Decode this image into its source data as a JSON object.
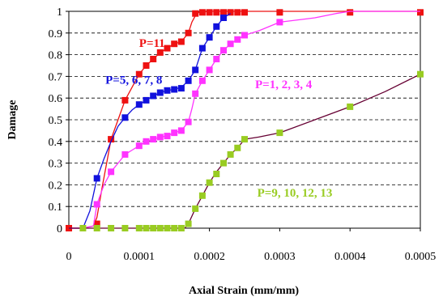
{
  "chart_data": {
    "type": "line",
    "xlabel": "Axial Strain (mm/mm)",
    "ylabel": "Damage",
    "xlim": [
      0,
      0.0005
    ],
    "ylim": [
      0,
      1
    ],
    "x_ticks": [
      "0",
      "0.0001",
      "0.0002",
      "0.0003",
      "0.0004",
      "0.0005"
    ],
    "y_ticks": [
      "0",
      "0.1",
      "0.2",
      "0.3",
      "0.4",
      "0.5",
      "0.6",
      "0.7",
      "0.8",
      "0.9",
      "1"
    ],
    "grid": "horizontal dashed",
    "legend": "none",
    "series": [
      {
        "color": "#ee1111",
        "line_color": "#ee1111",
        "line": [
          [
            0,
            0
          ],
          [
            2e-05,
            0
          ],
          [
            3.5e-05,
            0.01
          ],
          [
            4e-05,
            0.05
          ],
          [
            4.8e-05,
            0.2
          ],
          [
            5.5e-05,
            0.32
          ],
          [
            6e-05,
            0.41
          ],
          [
            7e-05,
            0.5
          ],
          [
            8e-05,
            0.59
          ],
          [
            9e-05,
            0.65
          ],
          [
            0.0001,
            0.71
          ],
          [
            0.00011,
            0.75
          ],
          [
            0.00012,
            0.78
          ],
          [
            0.00013,
            0.81
          ],
          [
            0.00014,
            0.83
          ],
          [
            0.00015,
            0.85
          ],
          [
            0.00016,
            0.86
          ],
          [
            0.00017,
            0.9
          ],
          [
            0.000175,
            0.95
          ],
          [
            0.00018,
            0.98
          ],
          [
            0.000185,
            0.995
          ],
          [
            0.0002,
            1
          ],
          [
            0.0003,
            1
          ],
          [
            0.0004,
            1
          ],
          [
            0.0005,
            1
          ]
        ],
        "markers": [
          [
            0,
            0
          ],
          [
            4e-05,
            0.02
          ],
          [
            6e-05,
            0.41
          ],
          [
            8e-05,
            0.59
          ],
          [
            0.0001,
            0.71
          ],
          [
            0.00011,
            0.75
          ],
          [
            0.00012,
            0.78
          ],
          [
            0.00013,
            0.81
          ],
          [
            0.00014,
            0.83
          ],
          [
            0.00015,
            0.85
          ],
          [
            0.00016,
            0.86
          ],
          [
            0.00017,
            0.9
          ],
          [
            0.00018,
            0.99
          ],
          [
            0.00019,
            0.995
          ],
          [
            0.0002,
            0.995
          ],
          [
            0.00021,
            0.995
          ],
          [
            0.00022,
            0.995
          ],
          [
            0.00023,
            0.995
          ],
          [
            0.00024,
            0.995
          ],
          [
            0.00025,
            0.995
          ],
          [
            0.0003,
            0.995
          ],
          [
            0.0004,
            0.995
          ],
          [
            0.0005,
            0.995
          ]
        ]
      },
      {
        "color": "#1111dd",
        "line_color": "#1111dd",
        "line": [
          [
            0,
            0
          ],
          [
            2e-05,
            0
          ],
          [
            3e-05,
            0.08
          ],
          [
            4e-05,
            0.23
          ],
          [
            5e-05,
            0.32
          ],
          [
            6e-05,
            0.4
          ],
          [
            7e-05,
            0.47
          ],
          [
            8e-05,
            0.51
          ],
          [
            9e-05,
            0.545
          ],
          [
            0.0001,
            0.57
          ],
          [
            0.00011,
            0.59
          ],
          [
            0.00012,
            0.61
          ],
          [
            0.00013,
            0.625
          ],
          [
            0.00014,
            0.635
          ],
          [
            0.00015,
            0.64
          ],
          [
            0.00016,
            0.65
          ],
          [
            0.00017,
            0.68
          ],
          [
            0.00018,
            0.73
          ],
          [
            0.00019,
            0.83
          ],
          [
            0.0002,
            0.88
          ],
          [
            0.00021,
            0.93
          ],
          [
            0.00022,
            0.97
          ],
          [
            0.00023,
            0.99
          ]
        ],
        "markers": [
          [
            4e-05,
            0.23
          ],
          [
            8e-05,
            0.51
          ],
          [
            0.0001,
            0.57
          ],
          [
            0.00011,
            0.59
          ],
          [
            0.00012,
            0.61
          ],
          [
            0.00013,
            0.625
          ],
          [
            0.00014,
            0.635
          ],
          [
            0.00015,
            0.64
          ],
          [
            0.00016,
            0.645
          ],
          [
            0.00017,
            0.68
          ],
          [
            0.00018,
            0.73
          ],
          [
            0.00019,
            0.83
          ],
          [
            0.0002,
            0.88
          ],
          [
            0.00021,
            0.93
          ],
          [
            0.00022,
            0.97
          ]
        ]
      },
      {
        "color": "#ff33ff",
        "line_color": "#ff33ff",
        "line": [
          [
            0,
            0
          ],
          [
            2e-05,
            0
          ],
          [
            3.5e-05,
            0.01
          ],
          [
            4e-05,
            0.11
          ],
          [
            5e-05,
            0.2
          ],
          [
            6e-05,
            0.26
          ],
          [
            7e-05,
            0.3
          ],
          [
            8e-05,
            0.34
          ],
          [
            9e-05,
            0.36
          ],
          [
            0.0001,
            0.38
          ],
          [
            0.00011,
            0.4
          ],
          [
            0.00012,
            0.41
          ],
          [
            0.00013,
            0.42
          ],
          [
            0.00014,
            0.425
          ],
          [
            0.00015,
            0.44
          ],
          [
            0.00016,
            0.45
          ],
          [
            0.00017,
            0.49
          ],
          [
            0.000175,
            0.55
          ],
          [
            0.00018,
            0.62
          ],
          [
            0.00019,
            0.68
          ],
          [
            0.0002,
            0.73
          ],
          [
            0.00021,
            0.78
          ],
          [
            0.00022,
            0.82
          ],
          [
            0.00023,
            0.85
          ],
          [
            0.00024,
            0.87
          ],
          [
            0.00025,
            0.89
          ],
          [
            0.00027,
            0.91
          ],
          [
            0.0003,
            0.95
          ],
          [
            0.00035,
            0.97
          ],
          [
            0.00038,
            0.99
          ],
          [
            0.0004,
            1
          ],
          [
            0.0005,
            1
          ]
        ],
        "markers": [
          [
            4e-05,
            0.11
          ],
          [
            6e-05,
            0.26
          ],
          [
            8e-05,
            0.34
          ],
          [
            0.0001,
            0.38
          ],
          [
            0.00011,
            0.4
          ],
          [
            0.00012,
            0.41
          ],
          [
            0.00013,
            0.42
          ],
          [
            0.00014,
            0.425
          ],
          [
            0.00015,
            0.44
          ],
          [
            0.00016,
            0.45
          ],
          [
            0.00017,
            0.49
          ],
          [
            0.00018,
            0.62
          ],
          [
            0.00019,
            0.68
          ],
          [
            0.0002,
            0.73
          ],
          [
            0.00021,
            0.78
          ],
          [
            0.00022,
            0.82
          ],
          [
            0.00023,
            0.85
          ],
          [
            0.00024,
            0.87
          ],
          [
            0.00025,
            0.89
          ],
          [
            0.0003,
            0.95
          ]
        ]
      },
      {
        "color": "#99cc22",
        "line_color": "#660033",
        "line": [
          [
            0,
            0
          ],
          [
            0.00016,
            0
          ],
          [
            0.000165,
            0
          ],
          [
            0.00017,
            0.02
          ],
          [
            0.00018,
            0.09
          ],
          [
            0.00019,
            0.15
          ],
          [
            0.0002,
            0.21
          ],
          [
            0.00021,
            0.26
          ],
          [
            0.00022,
            0.3
          ],
          [
            0.00023,
            0.34
          ],
          [
            0.00024,
            0.37
          ],
          [
            0.00025,
            0.41
          ],
          [
            0.00027,
            0.42
          ],
          [
            0.0003,
            0.44
          ],
          [
            0.00035,
            0.5
          ],
          [
            0.0004,
            0.56
          ],
          [
            0.00045,
            0.63
          ],
          [
            0.0005,
            0.71
          ]
        ],
        "markers": [
          [
            2e-05,
            0
          ],
          [
            4e-05,
            0
          ],
          [
            6e-05,
            0
          ],
          [
            8e-05,
            0
          ],
          [
            0.0001,
            0
          ],
          [
            0.00011,
            0
          ],
          [
            0.00012,
            0
          ],
          [
            0.00013,
            0
          ],
          [
            0.00014,
            0
          ],
          [
            0.00015,
            0
          ],
          [
            0.00016,
            0
          ],
          [
            0.00017,
            0.02
          ],
          [
            0.00018,
            0.09
          ],
          [
            0.00019,
            0.15
          ],
          [
            0.0002,
            0.21
          ],
          [
            0.00021,
            0.25
          ],
          [
            0.00022,
            0.3
          ],
          [
            0.00023,
            0.34
          ],
          [
            0.00024,
            0.37
          ],
          [
            0.00025,
            0.41
          ],
          [
            0.0003,
            0.44
          ],
          [
            0.0004,
            0.56
          ],
          [
            0.0005,
            0.71
          ]
        ]
      }
    ],
    "annotations": [
      {
        "text": "P=11",
        "x": 0.0001,
        "y": 0.855,
        "color": "#ee1111"
      },
      {
        "text": "P=5, 6, 7, 8",
        "x": 5.2e-05,
        "y": 0.685,
        "color": "#1111dd"
      },
      {
        "text": "P=1, 2, 3, 4",
        "x": 0.000265,
        "y": 0.665,
        "color": "#ff33ff"
      },
      {
        "text": "P=9, 10, 12, 13",
        "x": 0.000268,
        "y": 0.165,
        "color": "#99cc22"
      }
    ]
  }
}
